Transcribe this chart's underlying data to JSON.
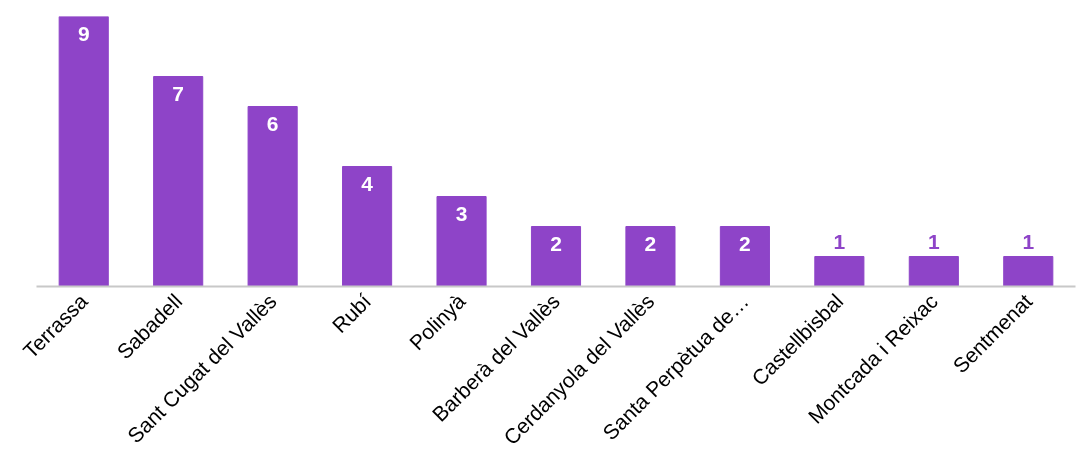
{
  "chart_data": {
    "type": "bar",
    "categories": [
      "Terrassa",
      "Sabadell",
      "Sant Cugat del Vallès",
      "Rubí",
      "Polinyà",
      "Barberà del Vallès",
      "Cerdanyola del Vallès",
      "Santa Perpètua de…",
      "Castellbisbal",
      "Montcada i Reixac",
      "Sentmenat"
    ],
    "values": [
      9,
      7,
      6,
      4,
      3,
      2,
      2,
      2,
      1,
      1,
      1
    ],
    "color": "#8e44c8",
    "data_labels": true,
    "grid": false
  }
}
